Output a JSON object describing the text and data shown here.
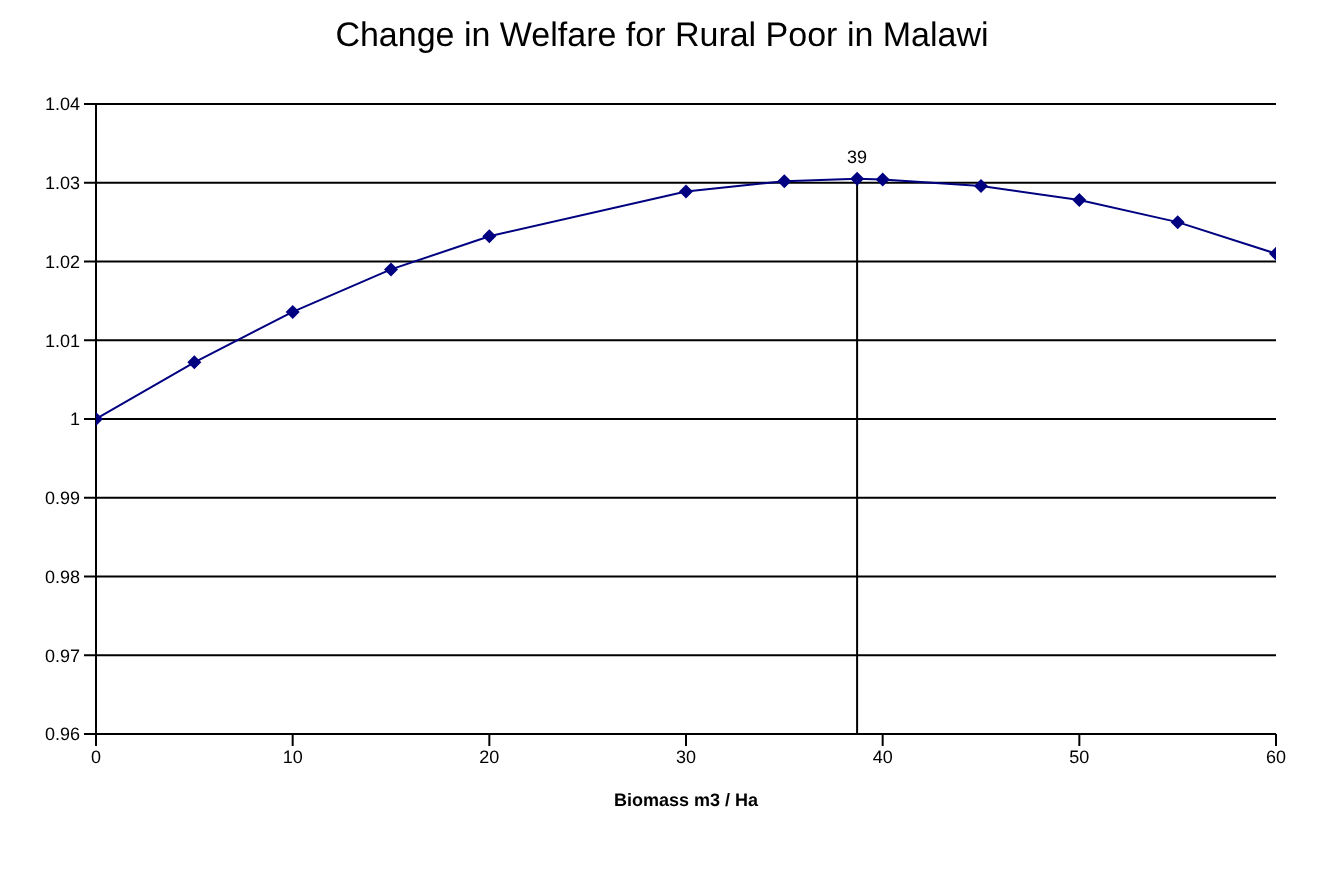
{
  "chart_data": {
    "type": "line",
    "title": "Change in Welfare for Rural Poor in Malawi",
    "xlabel": "Biomass m3 / Ha",
    "x": [
      0,
      5,
      10,
      15,
      20,
      30,
      35,
      38.7,
      40,
      45,
      50,
      55,
      60
    ],
    "series": [
      {
        "color": "#000080",
        "values": [
          1.0,
          1.0072,
          1.0136,
          1.019,
          1.0232,
          1.0289,
          1.0302,
          1.0305,
          1.0304,
          1.0296,
          1.0278,
          1.025,
          1.021
        ]
      }
    ],
    "xlim": [
      0,
      60
    ],
    "xticks": [
      0,
      10,
      20,
      30,
      40,
      50,
      60
    ],
    "ylim": [
      0.96,
      1.04
    ],
    "yticks": [
      {
        "value": 0.96,
        "label": "0.96"
      },
      {
        "value": 0.97,
        "label": "0.97"
      },
      {
        "value": 0.98,
        "label": "0.98"
      },
      {
        "value": 0.99,
        "label": "0.99"
      },
      {
        "value": 1,
        "label": "1"
      },
      {
        "value": 1.01,
        "label": "1.01"
      },
      {
        "value": 1.02,
        "label": "1.02"
      },
      {
        "value": 1.03,
        "label": "1.03"
      },
      {
        "value": 1.04,
        "label": "1.04"
      }
    ],
    "ref_lines": [
      {
        "axis": "x",
        "value": 38.7,
        "label": "39",
        "color": "#000000"
      }
    ],
    "grid": "y",
    "marker": "diamond",
    "line_style": "solid",
    "legend": false
  }
}
